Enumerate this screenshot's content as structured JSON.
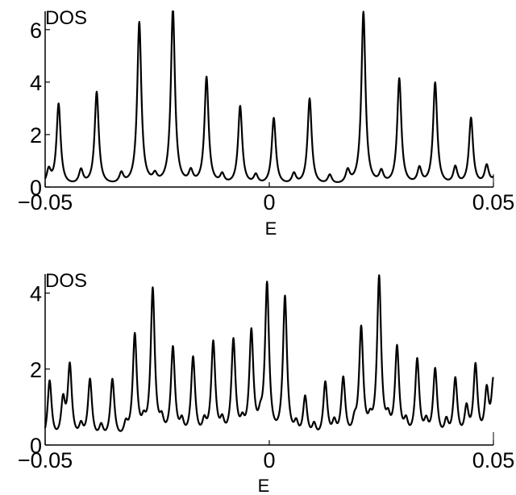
{
  "chart_data": [
    {
      "type": "line",
      "ylabel": "DOS",
      "xlabel": "E",
      "xlim": [
        -0.05,
        0.05
      ],
      "ylim": [
        0,
        6.7
      ],
      "xticks": [
        -0.05,
        0,
        0.05
      ],
      "xtick_labels": [
        "−0.05",
        "0",
        "0.05"
      ],
      "yticks": [
        0,
        2,
        4,
        6
      ],
      "ytick_labels": [
        "0",
        "2",
        "4",
        "6"
      ],
      "grid": false,
      "line_color": "#000000",
      "baseline": 0.02,
      "peaks": [
        {
          "x": -0.0492,
          "y": 0.55
        },
        {
          "x": -0.047,
          "y": 3.1
        },
        {
          "x": -0.042,
          "y": 0.55
        },
        {
          "x": -0.0385,
          "y": 3.55
        },
        {
          "x": -0.033,
          "y": 0.4
        },
        {
          "x": -0.029,
          "y": 6.2
        },
        {
          "x": -0.0255,
          "y": 0.3
        },
        {
          "x": -0.0215,
          "y": 6.7
        },
        {
          "x": -0.0175,
          "y": 0.45
        },
        {
          "x": -0.014,
          "y": 4.1
        },
        {
          "x": -0.0105,
          "y": 0.35
        },
        {
          "x": -0.0065,
          "y": 3.0
        },
        {
          "x": -0.003,
          "y": 0.35
        },
        {
          "x": 0.001,
          "y": 2.55
        },
        {
          "x": 0.0055,
          "y": 0.4
        },
        {
          "x": 0.009,
          "y": 3.3
        },
        {
          "x": 0.0135,
          "y": 0.35
        },
        {
          "x": 0.0175,
          "y": 0.5
        },
        {
          "x": 0.021,
          "y": 6.6
        },
        {
          "x": 0.025,
          "y": 0.45
        },
        {
          "x": 0.029,
          "y": 4.05
        },
        {
          "x": 0.0335,
          "y": 0.6
        },
        {
          "x": 0.037,
          "y": 3.9
        },
        {
          "x": 0.0415,
          "y": 0.65
        },
        {
          "x": 0.045,
          "y": 2.55
        },
        {
          "x": 0.0485,
          "y": 0.7
        },
        {
          "x": 0.0515,
          "y": 2.15
        }
      ]
    },
    {
      "type": "line",
      "ylabel": "DOS",
      "xlabel": "E",
      "xlim": [
        -0.05,
        0.05
      ],
      "ylim": [
        0,
        4.5
      ],
      "xticks": [
        -0.05,
        0,
        0.05
      ],
      "xtick_labels": [
        "−0.05",
        "0",
        "0.05"
      ],
      "yticks": [
        0,
        2,
        4
      ],
      "ytick_labels": [
        "0",
        "2",
        "4"
      ],
      "grid": false,
      "line_color": "#000000",
      "baseline": 0.02,
      "peaks": [
        {
          "x": -0.049,
          "y": 1.6
        },
        {
          "x": -0.046,
          "y": 1.0
        },
        {
          "x": -0.0445,
          "y": 1.95
        },
        {
          "x": -0.042,
          "y": 0.35
        },
        {
          "x": -0.04,
          "y": 1.6
        },
        {
          "x": -0.0375,
          "y": 0.35
        },
        {
          "x": -0.035,
          "y": 1.6
        },
        {
          "x": -0.032,
          "y": 0.35
        },
        {
          "x": -0.03,
          "y": 2.75
        },
        {
          "x": -0.028,
          "y": 0.35
        },
        {
          "x": -0.026,
          "y": 3.95
        },
        {
          "x": -0.024,
          "y": 0.4
        },
        {
          "x": -0.0215,
          "y": 2.4
        },
        {
          "x": -0.0195,
          "y": 0.4
        },
        {
          "x": -0.017,
          "y": 2.15
        },
        {
          "x": -0.0145,
          "y": 0.4
        },
        {
          "x": -0.0125,
          "y": 2.55
        },
        {
          "x": -0.0105,
          "y": 0.4
        },
        {
          "x": -0.008,
          "y": 2.6
        },
        {
          "x": -0.006,
          "y": 0.35
        },
        {
          "x": -0.004,
          "y": 2.8
        },
        {
          "x": -0.002,
          "y": 0.35
        },
        {
          "x": -0.0005,
          "y": 4.05
        },
        {
          "x": 0.0035,
          "y": 3.75
        },
        {
          "x": 0.006,
          "y": 0.35
        },
        {
          "x": 0.008,
          "y": 1.1
        },
        {
          "x": 0.01,
          "y": 0.35
        },
        {
          "x": 0.0125,
          "y": 1.5
        },
        {
          "x": 0.0145,
          "y": 0.4
        },
        {
          "x": 0.0165,
          "y": 1.6
        },
        {
          "x": 0.019,
          "y": 0.35
        },
        {
          "x": 0.0205,
          "y": 2.9
        },
        {
          "x": 0.0225,
          "y": 0.35
        },
        {
          "x": 0.0245,
          "y": 4.25
        },
        {
          "x": 0.0265,
          "y": 0.4
        },
        {
          "x": 0.0285,
          "y": 2.4
        },
        {
          "x": 0.0305,
          "y": 0.4
        },
        {
          "x": 0.033,
          "y": 2.1
        },
        {
          "x": 0.035,
          "y": 0.4
        },
        {
          "x": 0.037,
          "y": 1.85
        },
        {
          "x": 0.0395,
          "y": 0.45
        },
        {
          "x": 0.0415,
          "y": 1.6
        },
        {
          "x": 0.044,
          "y": 0.8
        },
        {
          "x": 0.046,
          "y": 1.95
        },
        {
          "x": 0.0485,
          "y": 1.25
        },
        {
          "x": 0.05,
          "y": 1.55
        }
      ]
    }
  ]
}
